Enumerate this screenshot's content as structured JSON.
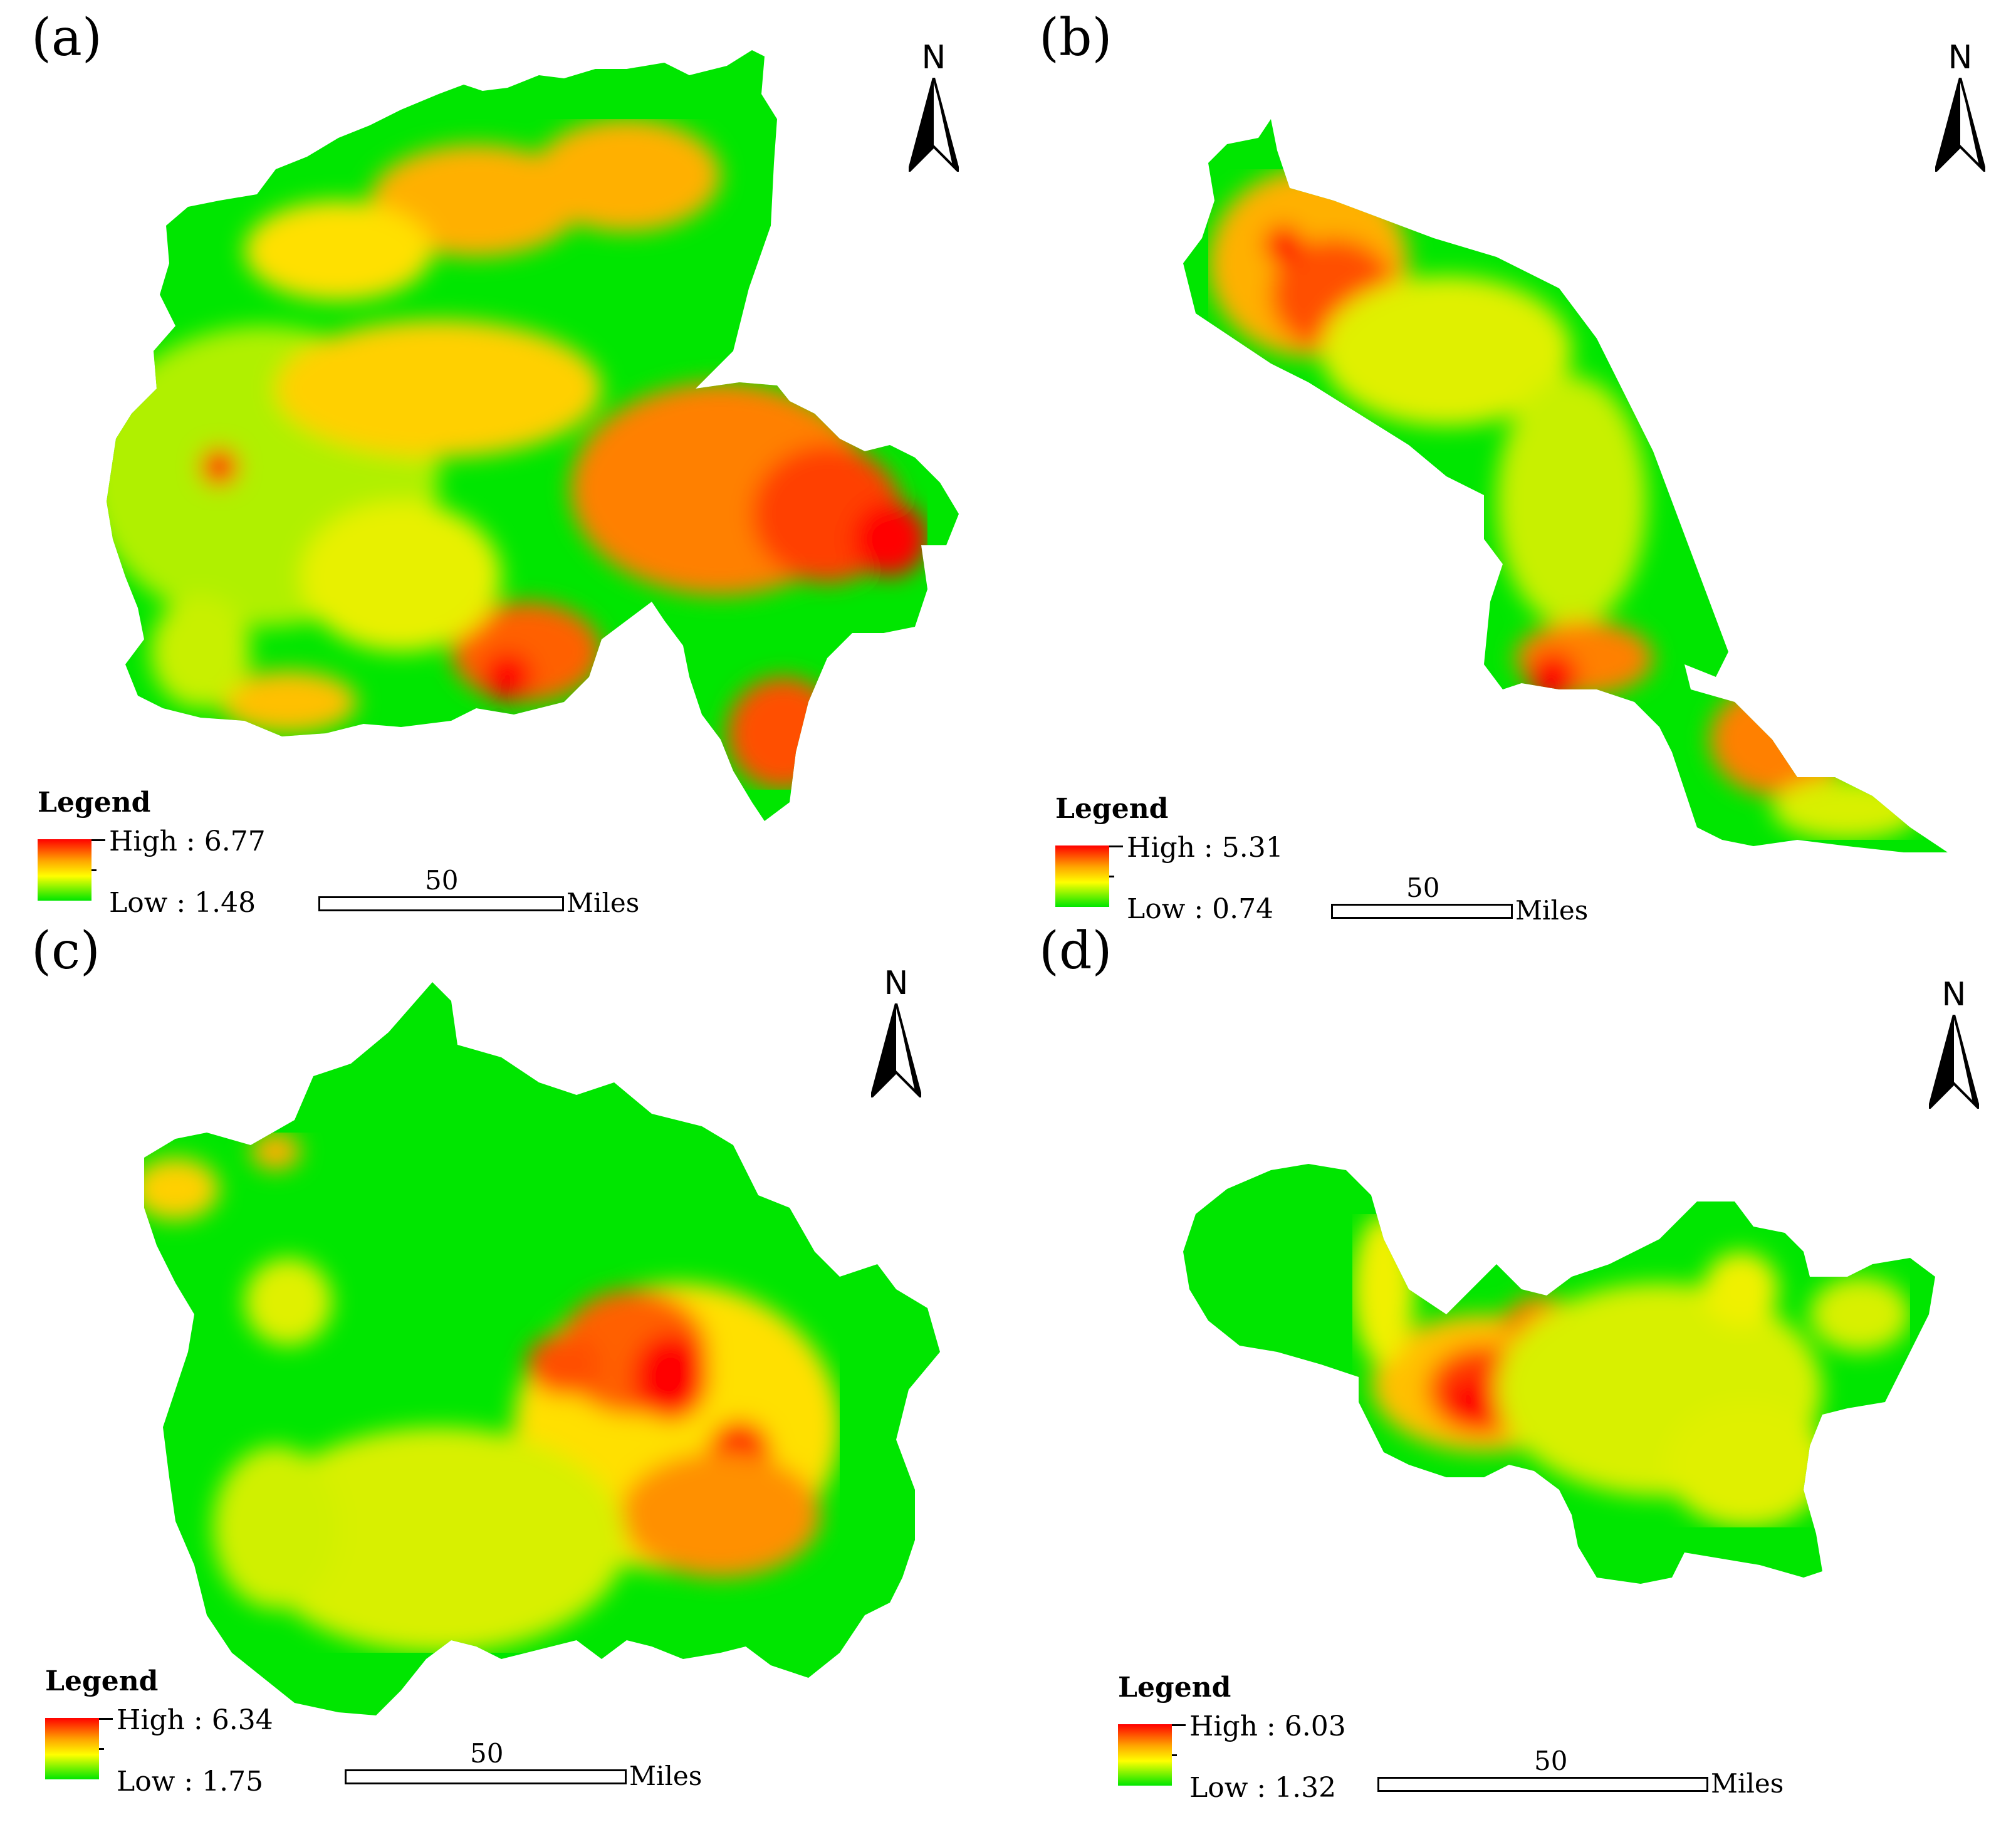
{
  "colors": {
    "high": "#ff0000",
    "mid_orange": "#ffa500",
    "mid_yellow": "#ffff00",
    "low": "#00e600"
  },
  "panels": [
    {
      "label": "(a)",
      "north": "N",
      "legend": {
        "title": "Legend",
        "high": "High : 6.77",
        "low": "Low : 1.48"
      },
      "scale": {
        "value": "50",
        "unit": "Miles"
      }
    },
    {
      "label": "(b)",
      "north": "N",
      "legend": {
        "title": "Legend",
        "high": "High : 5.31",
        "low": "Low : 0.74"
      },
      "scale": {
        "value": "50",
        "unit": "Miles"
      }
    },
    {
      "label": "(c)",
      "north": "N",
      "legend": {
        "title": "Legend",
        "high": "High : 6.34",
        "low": "Low : 1.75"
      },
      "scale": {
        "value": "50",
        "unit": "Miles"
      }
    },
    {
      "label": "(d)",
      "north": "N",
      "legend": {
        "title": "Legend",
        "high": "High : 6.03",
        "low": "Low : 1.32"
      },
      "scale": {
        "value": "50",
        "unit": "Miles"
      }
    }
  ]
}
